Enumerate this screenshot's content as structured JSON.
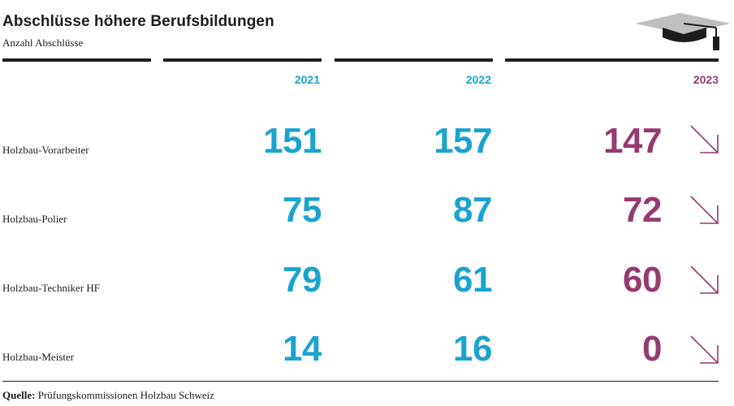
{
  "title": "Abschlüsse höhere Berufsbildungen",
  "subtitle": "Anzahl Abschlüsse",
  "icon": "graduation-cap-icon",
  "colors": {
    "past": "#1ba3cf",
    "current": "#963a70",
    "text": "#1d1d1b"
  },
  "chart_data": {
    "type": "table",
    "title": "Abschlüsse höhere Berufsbildungen",
    "subtitle": "Anzahl Abschlüsse",
    "columns": [
      "2021",
      "2022",
      "2023"
    ],
    "rows": [
      {
        "label": "Holzbau-Vorarbeiter",
        "values": [
          "151",
          "157",
          "147"
        ],
        "trend": "down"
      },
      {
        "label": "Holzbau-Polier",
        "values": [
          "75",
          "87",
          "72"
        ],
        "trend": "down"
      },
      {
        "label": "Holzbau-Techniker HF",
        "values": [
          "79",
          "61",
          "60"
        ],
        "trend": "down"
      },
      {
        "label": "Holzbau-Meister",
        "values": [
          "14",
          "16",
          "0"
        ],
        "trend": "down"
      }
    ]
  },
  "source": {
    "label": "Quelle:",
    "text": "Prüfungskommissionen Holzbau Schweiz"
  }
}
